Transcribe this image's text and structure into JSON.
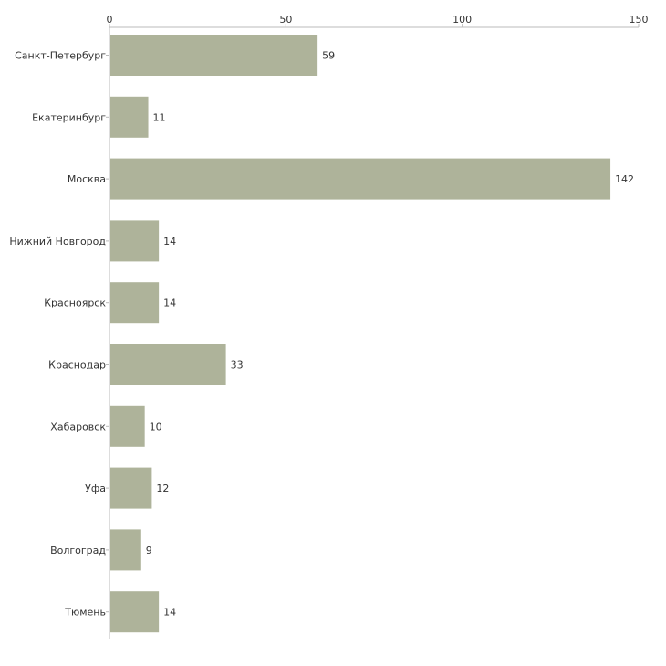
{
  "chart_data": {
    "type": "bar",
    "orientation": "horizontal",
    "title": "",
    "xlabel": "",
    "ylabel": "",
    "xlim": [
      0,
      150
    ],
    "x_ticks": [
      0,
      50,
      100,
      150
    ],
    "x_tick_labels": [
      "0",
      "50",
      "100",
      "150"
    ],
    "x_axis_position": "top",
    "grid": false,
    "legend": "none",
    "bar_color": "#aeb39a",
    "categories": [
      "Санкт-Петербург",
      "Екатеринбург",
      "Москва",
      "Нижний Новгород",
      "Красноярск",
      "Краснодар",
      "Хабаровск",
      "Уфа",
      "Волгоград",
      "Тюмень"
    ],
    "values": [
      59,
      11,
      142,
      14,
      14,
      33,
      10,
      12,
      9,
      14
    ],
    "value_labels": [
      "59",
      "11",
      "142",
      "14",
      "14",
      "33",
      "10",
      "12",
      "9",
      "14"
    ]
  }
}
